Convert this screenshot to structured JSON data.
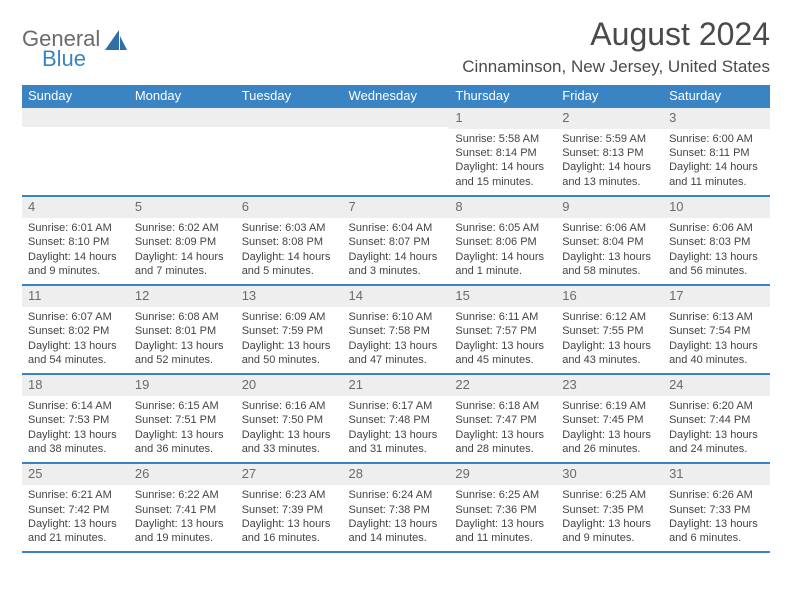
{
  "logo": {
    "text1": "General",
    "text2": "Blue"
  },
  "title": "August 2024",
  "location": "Cinnaminson, New Jersey, United States",
  "colors": {
    "header_bg": "#3b84c4",
    "header_text": "#ffffff",
    "border": "#3b84c4",
    "daynum_bg": "#eeeeee",
    "text": "#444444",
    "title_text": "#4a4a4a"
  },
  "day_headers": [
    "Sunday",
    "Monday",
    "Tuesday",
    "Wednesday",
    "Thursday",
    "Friday",
    "Saturday"
  ],
  "weeks": [
    [
      null,
      null,
      null,
      null,
      {
        "n": "1",
        "sunrise": "5:58 AM",
        "sunset": "8:14 PM",
        "daylight": "14 hours and 15 minutes."
      },
      {
        "n": "2",
        "sunrise": "5:59 AM",
        "sunset": "8:13 PM",
        "daylight": "14 hours and 13 minutes."
      },
      {
        "n": "3",
        "sunrise": "6:00 AM",
        "sunset": "8:11 PM",
        "daylight": "14 hours and 11 minutes."
      }
    ],
    [
      {
        "n": "4",
        "sunrise": "6:01 AM",
        "sunset": "8:10 PM",
        "daylight": "14 hours and 9 minutes."
      },
      {
        "n": "5",
        "sunrise": "6:02 AM",
        "sunset": "8:09 PM",
        "daylight": "14 hours and 7 minutes."
      },
      {
        "n": "6",
        "sunrise": "6:03 AM",
        "sunset": "8:08 PM",
        "daylight": "14 hours and 5 minutes."
      },
      {
        "n": "7",
        "sunrise": "6:04 AM",
        "sunset": "8:07 PM",
        "daylight": "14 hours and 3 minutes."
      },
      {
        "n": "8",
        "sunrise": "6:05 AM",
        "sunset": "8:06 PM",
        "daylight": "14 hours and 1 minute."
      },
      {
        "n": "9",
        "sunrise": "6:06 AM",
        "sunset": "8:04 PM",
        "daylight": "13 hours and 58 minutes."
      },
      {
        "n": "10",
        "sunrise": "6:06 AM",
        "sunset": "8:03 PM",
        "daylight": "13 hours and 56 minutes."
      }
    ],
    [
      {
        "n": "11",
        "sunrise": "6:07 AM",
        "sunset": "8:02 PM",
        "daylight": "13 hours and 54 minutes."
      },
      {
        "n": "12",
        "sunrise": "6:08 AM",
        "sunset": "8:01 PM",
        "daylight": "13 hours and 52 minutes."
      },
      {
        "n": "13",
        "sunrise": "6:09 AM",
        "sunset": "7:59 PM",
        "daylight": "13 hours and 50 minutes."
      },
      {
        "n": "14",
        "sunrise": "6:10 AM",
        "sunset": "7:58 PM",
        "daylight": "13 hours and 47 minutes."
      },
      {
        "n": "15",
        "sunrise": "6:11 AM",
        "sunset": "7:57 PM",
        "daylight": "13 hours and 45 minutes."
      },
      {
        "n": "16",
        "sunrise": "6:12 AM",
        "sunset": "7:55 PM",
        "daylight": "13 hours and 43 minutes."
      },
      {
        "n": "17",
        "sunrise": "6:13 AM",
        "sunset": "7:54 PM",
        "daylight": "13 hours and 40 minutes."
      }
    ],
    [
      {
        "n": "18",
        "sunrise": "6:14 AM",
        "sunset": "7:53 PM",
        "daylight": "13 hours and 38 minutes."
      },
      {
        "n": "19",
        "sunrise": "6:15 AM",
        "sunset": "7:51 PM",
        "daylight": "13 hours and 36 minutes."
      },
      {
        "n": "20",
        "sunrise": "6:16 AM",
        "sunset": "7:50 PM",
        "daylight": "13 hours and 33 minutes."
      },
      {
        "n": "21",
        "sunrise": "6:17 AM",
        "sunset": "7:48 PM",
        "daylight": "13 hours and 31 minutes."
      },
      {
        "n": "22",
        "sunrise": "6:18 AM",
        "sunset": "7:47 PM",
        "daylight": "13 hours and 28 minutes."
      },
      {
        "n": "23",
        "sunrise": "6:19 AM",
        "sunset": "7:45 PM",
        "daylight": "13 hours and 26 minutes."
      },
      {
        "n": "24",
        "sunrise": "6:20 AM",
        "sunset": "7:44 PM",
        "daylight": "13 hours and 24 minutes."
      }
    ],
    [
      {
        "n": "25",
        "sunrise": "6:21 AM",
        "sunset": "7:42 PM",
        "daylight": "13 hours and 21 minutes."
      },
      {
        "n": "26",
        "sunrise": "6:22 AM",
        "sunset": "7:41 PM",
        "daylight": "13 hours and 19 minutes."
      },
      {
        "n": "27",
        "sunrise": "6:23 AM",
        "sunset": "7:39 PM",
        "daylight": "13 hours and 16 minutes."
      },
      {
        "n": "28",
        "sunrise": "6:24 AM",
        "sunset": "7:38 PM",
        "daylight": "13 hours and 14 minutes."
      },
      {
        "n": "29",
        "sunrise": "6:25 AM",
        "sunset": "7:36 PM",
        "daylight": "13 hours and 11 minutes."
      },
      {
        "n": "30",
        "sunrise": "6:25 AM",
        "sunset": "7:35 PM",
        "daylight": "13 hours and 9 minutes."
      },
      {
        "n": "31",
        "sunrise": "6:26 AM",
        "sunset": "7:33 PM",
        "daylight": "13 hours and 6 minutes."
      }
    ]
  ],
  "labels": {
    "sunrise": "Sunrise:",
    "sunset": "Sunset:",
    "daylight": "Daylight:"
  }
}
